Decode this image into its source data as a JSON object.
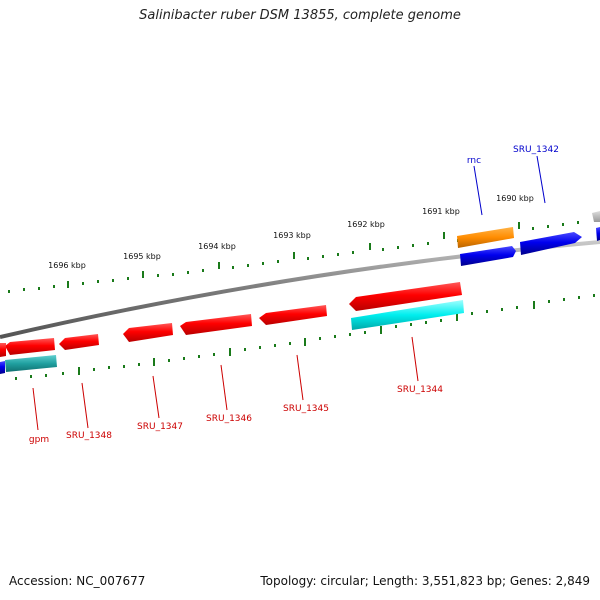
{
  "header": {
    "title": "Salinibacter ruber DSM 13855, complete genome"
  },
  "footer": {
    "accession": "Accession: NC_007677",
    "topology": "Topology: circular; Length: 3,551,823 bp; Genes: 2,849"
  },
  "scale": {
    "ticks": [
      {
        "label": "1696 kbp"
      },
      {
        "label": "1695 kbp"
      },
      {
        "label": "1694 kbp"
      },
      {
        "label": "1693 kbp"
      },
      {
        "label": "1692 kbp"
      },
      {
        "label": "1691 kbp"
      },
      {
        "label": "1690 kbp"
      }
    ]
  },
  "genes": {
    "forward_labels": [
      {
        "name": "rnc",
        "color": "#00008b"
      },
      {
        "name": "SRU_1342",
        "color": "#00008b"
      }
    ],
    "reverse_labels": [
      {
        "name": "gpm",
        "color": "#cc0000"
      },
      {
        "name": "SRU_1348",
        "color": "#cc0000"
      },
      {
        "name": "SRU_1347",
        "color": "#cc0000"
      },
      {
        "name": "SRU_1346",
        "color": "#cc0000"
      },
      {
        "name": "SRU_1345",
        "color": "#cc0000"
      },
      {
        "name": "SRU_1344",
        "color": "#cc0000"
      }
    ]
  },
  "colors": {
    "backbone": "#888888",
    "cds_reverse": "#ff0000",
    "cds_forward": "#0000ee",
    "cds_other": "#ff8c00",
    "cog_cyan": "#00eeee",
    "tick_green": "#1a7a1a"
  }
}
